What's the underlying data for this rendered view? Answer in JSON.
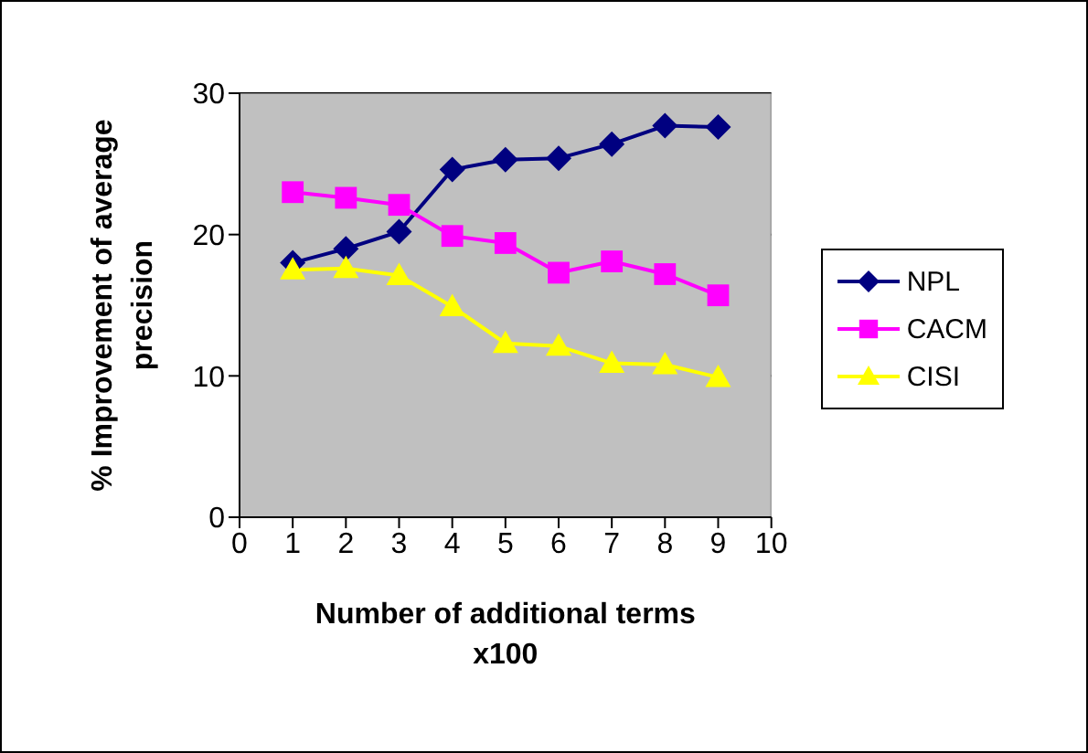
{
  "chart_data": {
    "type": "line",
    "xlabel": "Number of additional terms x100",
    "ylabel": "% Improvement of average precision",
    "x": [
      1,
      2,
      3,
      4,
      5,
      6,
      7,
      8,
      9
    ],
    "series": [
      {
        "name": "NPL",
        "color": "#000080",
        "marker": "diamond",
        "values": [
          18.0,
          19.0,
          20.2,
          24.6,
          25.3,
          25.4,
          26.4,
          27.7,
          27.6
        ]
      },
      {
        "name": "CACM",
        "color": "#ff00ff",
        "marker": "square",
        "values": [
          23.0,
          22.6,
          22.1,
          19.9,
          19.4,
          17.3,
          18.1,
          17.2,
          15.7
        ]
      },
      {
        "name": "CISI",
        "color": "#ffff00",
        "marker": "triangle",
        "values": [
          17.5,
          17.6,
          17.1,
          14.9,
          12.3,
          12.1,
          10.9,
          10.8,
          9.9
        ]
      }
    ],
    "xlim": [
      0,
      10
    ],
    "xticks": [
      0,
      1,
      2,
      3,
      4,
      5,
      6,
      7,
      8,
      9,
      10
    ],
    "ylim": [
      0,
      30
    ],
    "yticks": [
      0,
      10,
      20,
      30
    ],
    "grid": "y",
    "legend": "right"
  }
}
